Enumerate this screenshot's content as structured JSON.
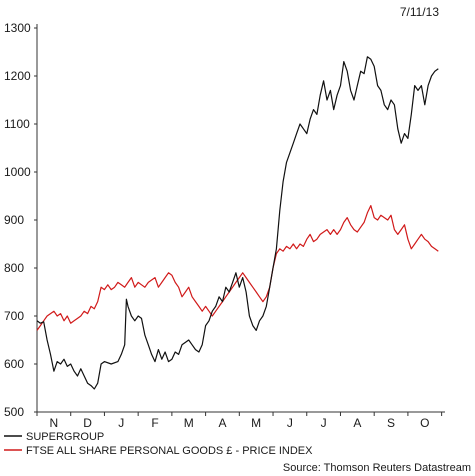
{
  "date": "7/11/13",
  "source": "Source: Thomson Reuters Datastream",
  "chart_data": {
    "type": "line",
    "title": "",
    "xlabel": "",
    "ylabel": "",
    "ylim": [
      500,
      1300
    ],
    "yticks": [
      500,
      600,
      700,
      800,
      900,
      1000,
      1100,
      1200,
      1300
    ],
    "xlim": [
      0,
      12.1
    ],
    "months": [
      "N",
      "D",
      "J",
      "F",
      "M",
      "A",
      "M",
      "J",
      "J",
      "A",
      "S",
      "O"
    ],
    "grid": false,
    "legend_position": "bottom-left",
    "series": [
      {
        "name": "SUPERGROUP",
        "color": "#111111",
        "points": [
          [
            0.0,
            690
          ],
          [
            0.1,
            685
          ],
          [
            0.2,
            688
          ],
          [
            0.3,
            650
          ],
          [
            0.4,
            620
          ],
          [
            0.5,
            585
          ],
          [
            0.6,
            605
          ],
          [
            0.7,
            600
          ],
          [
            0.8,
            610
          ],
          [
            0.9,
            595
          ],
          [
            1.0,
            600
          ],
          [
            1.1,
            585
          ],
          [
            1.2,
            575
          ],
          [
            1.3,
            590
          ],
          [
            1.4,
            575
          ],
          [
            1.5,
            560
          ],
          [
            1.6,
            555
          ],
          [
            1.7,
            548
          ],
          [
            1.8,
            560
          ],
          [
            1.9,
            600
          ],
          [
            2.0,
            605
          ],
          [
            2.2,
            600
          ],
          [
            2.4,
            605
          ],
          [
            2.5,
            620
          ],
          [
            2.6,
            640
          ],
          [
            2.65,
            735
          ],
          [
            2.7,
            720
          ],
          [
            2.8,
            700
          ],
          [
            2.9,
            690
          ],
          [
            3.0,
            700
          ],
          [
            3.1,
            695
          ],
          [
            3.2,
            660
          ],
          [
            3.3,
            640
          ],
          [
            3.4,
            620
          ],
          [
            3.5,
            605
          ],
          [
            3.6,
            630
          ],
          [
            3.7,
            610
          ],
          [
            3.8,
            625
          ],
          [
            3.9,
            605
          ],
          [
            4.0,
            610
          ],
          [
            4.1,
            625
          ],
          [
            4.2,
            620
          ],
          [
            4.3,
            640
          ],
          [
            4.4,
            645
          ],
          [
            4.5,
            650
          ],
          [
            4.6,
            640
          ],
          [
            4.7,
            630
          ],
          [
            4.8,
            625
          ],
          [
            4.9,
            640
          ],
          [
            5.0,
            680
          ],
          [
            5.1,
            690
          ],
          [
            5.2,
            710
          ],
          [
            5.3,
            720
          ],
          [
            5.4,
            740
          ],
          [
            5.5,
            730
          ],
          [
            5.6,
            760
          ],
          [
            5.7,
            750
          ],
          [
            5.8,
            770
          ],
          [
            5.9,
            790
          ],
          [
            6.0,
            760
          ],
          [
            6.1,
            780
          ],
          [
            6.2,
            750
          ],
          [
            6.3,
            700
          ],
          [
            6.4,
            680
          ],
          [
            6.5,
            670
          ],
          [
            6.6,
            690
          ],
          [
            6.7,
            700
          ],
          [
            6.8,
            720
          ],
          [
            6.9,
            760
          ],
          [
            7.0,
            800
          ],
          [
            7.1,
            840
          ],
          [
            7.2,
            920
          ],
          [
            7.3,
            980
          ],
          [
            7.4,
            1020
          ],
          [
            7.5,
            1040
          ],
          [
            7.6,
            1060
          ],
          [
            7.7,
            1080
          ],
          [
            7.8,
            1100
          ],
          [
            7.9,
            1090
          ],
          [
            8.0,
            1080
          ],
          [
            8.1,
            1110
          ],
          [
            8.2,
            1130
          ],
          [
            8.3,
            1120
          ],
          [
            8.4,
            1160
          ],
          [
            8.5,
            1190
          ],
          [
            8.6,
            1150
          ],
          [
            8.7,
            1170
          ],
          [
            8.8,
            1130
          ],
          [
            8.9,
            1160
          ],
          [
            9.0,
            1180
          ],
          [
            9.1,
            1230
          ],
          [
            9.2,
            1210
          ],
          [
            9.3,
            1170
          ],
          [
            9.4,
            1150
          ],
          [
            9.5,
            1180
          ],
          [
            9.6,
            1210
          ],
          [
            9.7,
            1205
          ],
          [
            9.8,
            1240
          ],
          [
            9.9,
            1235
          ],
          [
            10.0,
            1220
          ],
          [
            10.1,
            1180
          ],
          [
            10.2,
            1170
          ],
          [
            10.3,
            1140
          ],
          [
            10.4,
            1130
          ],
          [
            10.5,
            1150
          ],
          [
            10.6,
            1140
          ],
          [
            10.7,
            1090
          ],
          [
            10.8,
            1060
          ],
          [
            10.9,
            1080
          ],
          [
            11.0,
            1070
          ],
          [
            11.1,
            1120
          ],
          [
            11.2,
            1180
          ],
          [
            11.3,
            1170
          ],
          [
            11.4,
            1180
          ],
          [
            11.5,
            1140
          ],
          [
            11.6,
            1180
          ],
          [
            11.7,
            1200
          ],
          [
            11.8,
            1210
          ],
          [
            11.9,
            1215
          ]
        ]
      },
      {
        "name": "FTSE ALL SHARE PERSONAL GOODS £ - PRICE INDEX",
        "color": "#d11a1a",
        "points": [
          [
            0.0,
            670
          ],
          [
            0.1,
            680
          ],
          [
            0.2,
            690
          ],
          [
            0.3,
            700
          ],
          [
            0.4,
            705
          ],
          [
            0.5,
            710
          ],
          [
            0.6,
            700
          ],
          [
            0.7,
            705
          ],
          [
            0.8,
            690
          ],
          [
            0.9,
            700
          ],
          [
            1.0,
            685
          ],
          [
            1.1,
            690
          ],
          [
            1.2,
            695
          ],
          [
            1.3,
            700
          ],
          [
            1.4,
            710
          ],
          [
            1.5,
            705
          ],
          [
            1.6,
            720
          ],
          [
            1.7,
            715
          ],
          [
            1.8,
            730
          ],
          [
            1.9,
            760
          ],
          [
            2.0,
            755
          ],
          [
            2.1,
            765
          ],
          [
            2.2,
            755
          ],
          [
            2.3,
            760
          ],
          [
            2.4,
            770
          ],
          [
            2.5,
            765
          ],
          [
            2.6,
            760
          ],
          [
            2.7,
            770
          ],
          [
            2.8,
            780
          ],
          [
            2.9,
            760
          ],
          [
            3.0,
            770
          ],
          [
            3.1,
            765
          ],
          [
            3.2,
            760
          ],
          [
            3.3,
            770
          ],
          [
            3.4,
            775
          ],
          [
            3.5,
            780
          ],
          [
            3.6,
            760
          ],
          [
            3.7,
            770
          ],
          [
            3.8,
            780
          ],
          [
            3.9,
            790
          ],
          [
            4.0,
            785
          ],
          [
            4.1,
            770
          ],
          [
            4.2,
            760
          ],
          [
            4.3,
            740
          ],
          [
            4.4,
            750
          ],
          [
            4.5,
            760
          ],
          [
            4.6,
            740
          ],
          [
            4.7,
            730
          ],
          [
            4.8,
            720
          ],
          [
            4.9,
            710
          ],
          [
            5.0,
            720
          ],
          [
            5.1,
            710
          ],
          [
            5.2,
            700
          ],
          [
            5.3,
            710
          ],
          [
            5.4,
            720
          ],
          [
            5.5,
            730
          ],
          [
            5.6,
            740
          ],
          [
            5.7,
            750
          ],
          [
            5.8,
            760
          ],
          [
            5.9,
            770
          ],
          [
            6.0,
            780
          ],
          [
            6.1,
            790
          ],
          [
            6.2,
            780
          ],
          [
            6.3,
            770
          ],
          [
            6.4,
            760
          ],
          [
            6.5,
            750
          ],
          [
            6.6,
            740
          ],
          [
            6.7,
            730
          ],
          [
            6.8,
            740
          ],
          [
            6.9,
            760
          ],
          [
            7.0,
            800
          ],
          [
            7.1,
            830
          ],
          [
            7.2,
            840
          ],
          [
            7.3,
            835
          ],
          [
            7.4,
            845
          ],
          [
            7.5,
            840
          ],
          [
            7.6,
            850
          ],
          [
            7.7,
            840
          ],
          [
            7.8,
            850
          ],
          [
            7.9,
            845
          ],
          [
            8.0,
            860
          ],
          [
            8.1,
            870
          ],
          [
            8.2,
            855
          ],
          [
            8.3,
            860
          ],
          [
            8.4,
            870
          ],
          [
            8.5,
            875
          ],
          [
            8.6,
            880
          ],
          [
            8.7,
            870
          ],
          [
            8.8,
            880
          ],
          [
            8.9,
            870
          ],
          [
            9.0,
            880
          ],
          [
            9.1,
            895
          ],
          [
            9.2,
            905
          ],
          [
            9.3,
            890
          ],
          [
            9.4,
            880
          ],
          [
            9.5,
            875
          ],
          [
            9.6,
            885
          ],
          [
            9.7,
            895
          ],
          [
            9.8,
            915
          ],
          [
            9.9,
            930
          ],
          [
            10.0,
            905
          ],
          [
            10.1,
            900
          ],
          [
            10.2,
            910
          ],
          [
            10.3,
            905
          ],
          [
            10.4,
            900
          ],
          [
            10.5,
            910
          ],
          [
            10.6,
            880
          ],
          [
            10.7,
            870
          ],
          [
            10.8,
            880
          ],
          [
            10.9,
            890
          ],
          [
            11.0,
            860
          ],
          [
            11.1,
            840
          ],
          [
            11.2,
            850
          ],
          [
            11.3,
            860
          ],
          [
            11.4,
            870
          ],
          [
            11.5,
            860
          ],
          [
            11.6,
            855
          ],
          [
            11.7,
            845
          ],
          [
            11.8,
            840
          ],
          [
            11.9,
            835
          ]
        ]
      }
    ]
  }
}
